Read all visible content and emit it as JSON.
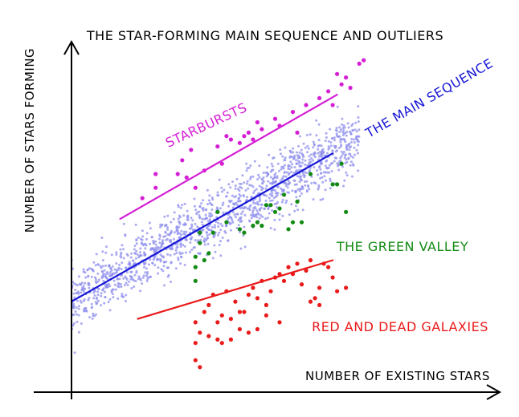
{
  "chart_data": {
    "type": "scatter",
    "title": "THE STAR-FORMING MAIN SEQUENCE AND OUTLIERS",
    "xlabel": "NUMBER OF EXISTING STARS",
    "ylabel": "NUMBER OF STARS FORMING",
    "xlim": [
      0,
      100
    ],
    "ylim": [
      0,
      100
    ],
    "grid": false,
    "legend": "none",
    "colors": {
      "main_sequence_points": "#8f8fee",
      "main_sequence_line": "#1717d6",
      "starburst": "#d51fd5",
      "green_valley": "#138a13",
      "red_dead": "#ea1a1a"
    },
    "series": [
      {
        "name": "THE MAIN SEQUENCE",
        "fit_line": [
          [
            0,
            23
          ],
          [
            59,
            66
          ]
        ],
        "spread": 8,
        "count": 1400,
        "x_range": [
          0,
          65
        ]
      },
      {
        "name": "STARBURSTS",
        "fit_line": [
          [
            11,
            47
          ],
          [
            60,
            83
          ]
        ],
        "points": [
          [
            16,
            53
          ],
          [
            19,
            60
          ],
          [
            19,
            56
          ],
          [
            24,
            60
          ],
          [
            25,
            64
          ],
          [
            26,
            59
          ],
          [
            27,
            67
          ],
          [
            28,
            56
          ],
          [
            30,
            61
          ],
          [
            33,
            68
          ],
          [
            34,
            63
          ],
          [
            35,
            71
          ],
          [
            36,
            70
          ],
          [
            38,
            69
          ],
          [
            39,
            71
          ],
          [
            40,
            72
          ],
          [
            41,
            70
          ],
          [
            42,
            75
          ],
          [
            43,
            73
          ],
          [
            46,
            76
          ],
          [
            47,
            74
          ],
          [
            50,
            78
          ],
          [
            51,
            72
          ],
          [
            53,
            80
          ],
          [
            56,
            82
          ],
          [
            58,
            84
          ],
          [
            59,
            80
          ],
          [
            60,
            89
          ],
          [
            61,
            86
          ],
          [
            62,
            88
          ],
          [
            63,
            85
          ],
          [
            65,
            92
          ],
          [
            66,
            93
          ]
        ]
      },
      {
        "name": "THE GREEN VALLEY",
        "points": [
          [
            28,
            29
          ],
          [
            28,
            33
          ],
          [
            28,
            36
          ],
          [
            29,
            40
          ],
          [
            29,
            43
          ],
          [
            30,
            35
          ],
          [
            31,
            37
          ],
          [
            32,
            43
          ],
          [
            33,
            49
          ],
          [
            35,
            46
          ],
          [
            38,
            44
          ],
          [
            39,
            43
          ],
          [
            41,
            45
          ],
          [
            42,
            46
          ],
          [
            43,
            45
          ],
          [
            44,
            51
          ],
          [
            45,
            51
          ],
          [
            46,
            49
          ],
          [
            47,
            50
          ],
          [
            48,
            54
          ],
          [
            49,
            44
          ],
          [
            50,
            46
          ],
          [
            51,
            52
          ],
          [
            52,
            46
          ],
          [
            54,
            60
          ],
          [
            59,
            57
          ],
          [
            60,
            57
          ],
          [
            61,
            63
          ],
          [
            62,
            49
          ]
        ]
      },
      {
        "name": "RED AND DEAD GALAXIES",
        "fit_line": [
          [
            15,
            18
          ],
          [
            59,
            35
          ]
        ],
        "points": [
          [
            28,
            17
          ],
          [
            28,
            11
          ],
          [
            29,
            14
          ],
          [
            30,
            20
          ],
          [
            31,
            22
          ],
          [
            32,
            25
          ],
          [
            33,
            17
          ],
          [
            34,
            19
          ],
          [
            35,
            26
          ],
          [
            36,
            18
          ],
          [
            37,
            23
          ],
          [
            38,
            15
          ],
          [
            39,
            20
          ],
          [
            40,
            25
          ],
          [
            41,
            27
          ],
          [
            42,
            24
          ],
          [
            43,
            29
          ],
          [
            44,
            22
          ],
          [
            45,
            26
          ],
          [
            46,
            30
          ],
          [
            47,
            31
          ],
          [
            48,
            29
          ],
          [
            49,
            33
          ],
          [
            50,
            31
          ],
          [
            51,
            34
          ],
          [
            52,
            28
          ],
          [
            53,
            32
          ],
          [
            54,
            35
          ],
          [
            55,
            24
          ],
          [
            56,
            27
          ],
          [
            57,
            34
          ],
          [
            58,
            33
          ],
          [
            59,
            30
          ],
          [
            60,
            26
          ],
          [
            28,
            6
          ],
          [
            29,
            4
          ],
          [
            31,
            13
          ],
          [
            33,
            12
          ],
          [
            34,
            11
          ],
          [
            36,
            12
          ],
          [
            38,
            20
          ],
          [
            40,
            14
          ],
          [
            42,
            15
          ],
          [
            44,
            19
          ],
          [
            47,
            17
          ],
          [
            54,
            23
          ],
          [
            56,
            22
          ],
          [
            62,
            27
          ]
        ]
      }
    ]
  },
  "labels": {
    "main_sequence": "THE MAIN SEQUENCE",
    "starbursts": "STARBURSTS",
    "green_valley": "THE GREEN VALLEY",
    "red_dead": "RED AND DEAD GALAXIES"
  }
}
